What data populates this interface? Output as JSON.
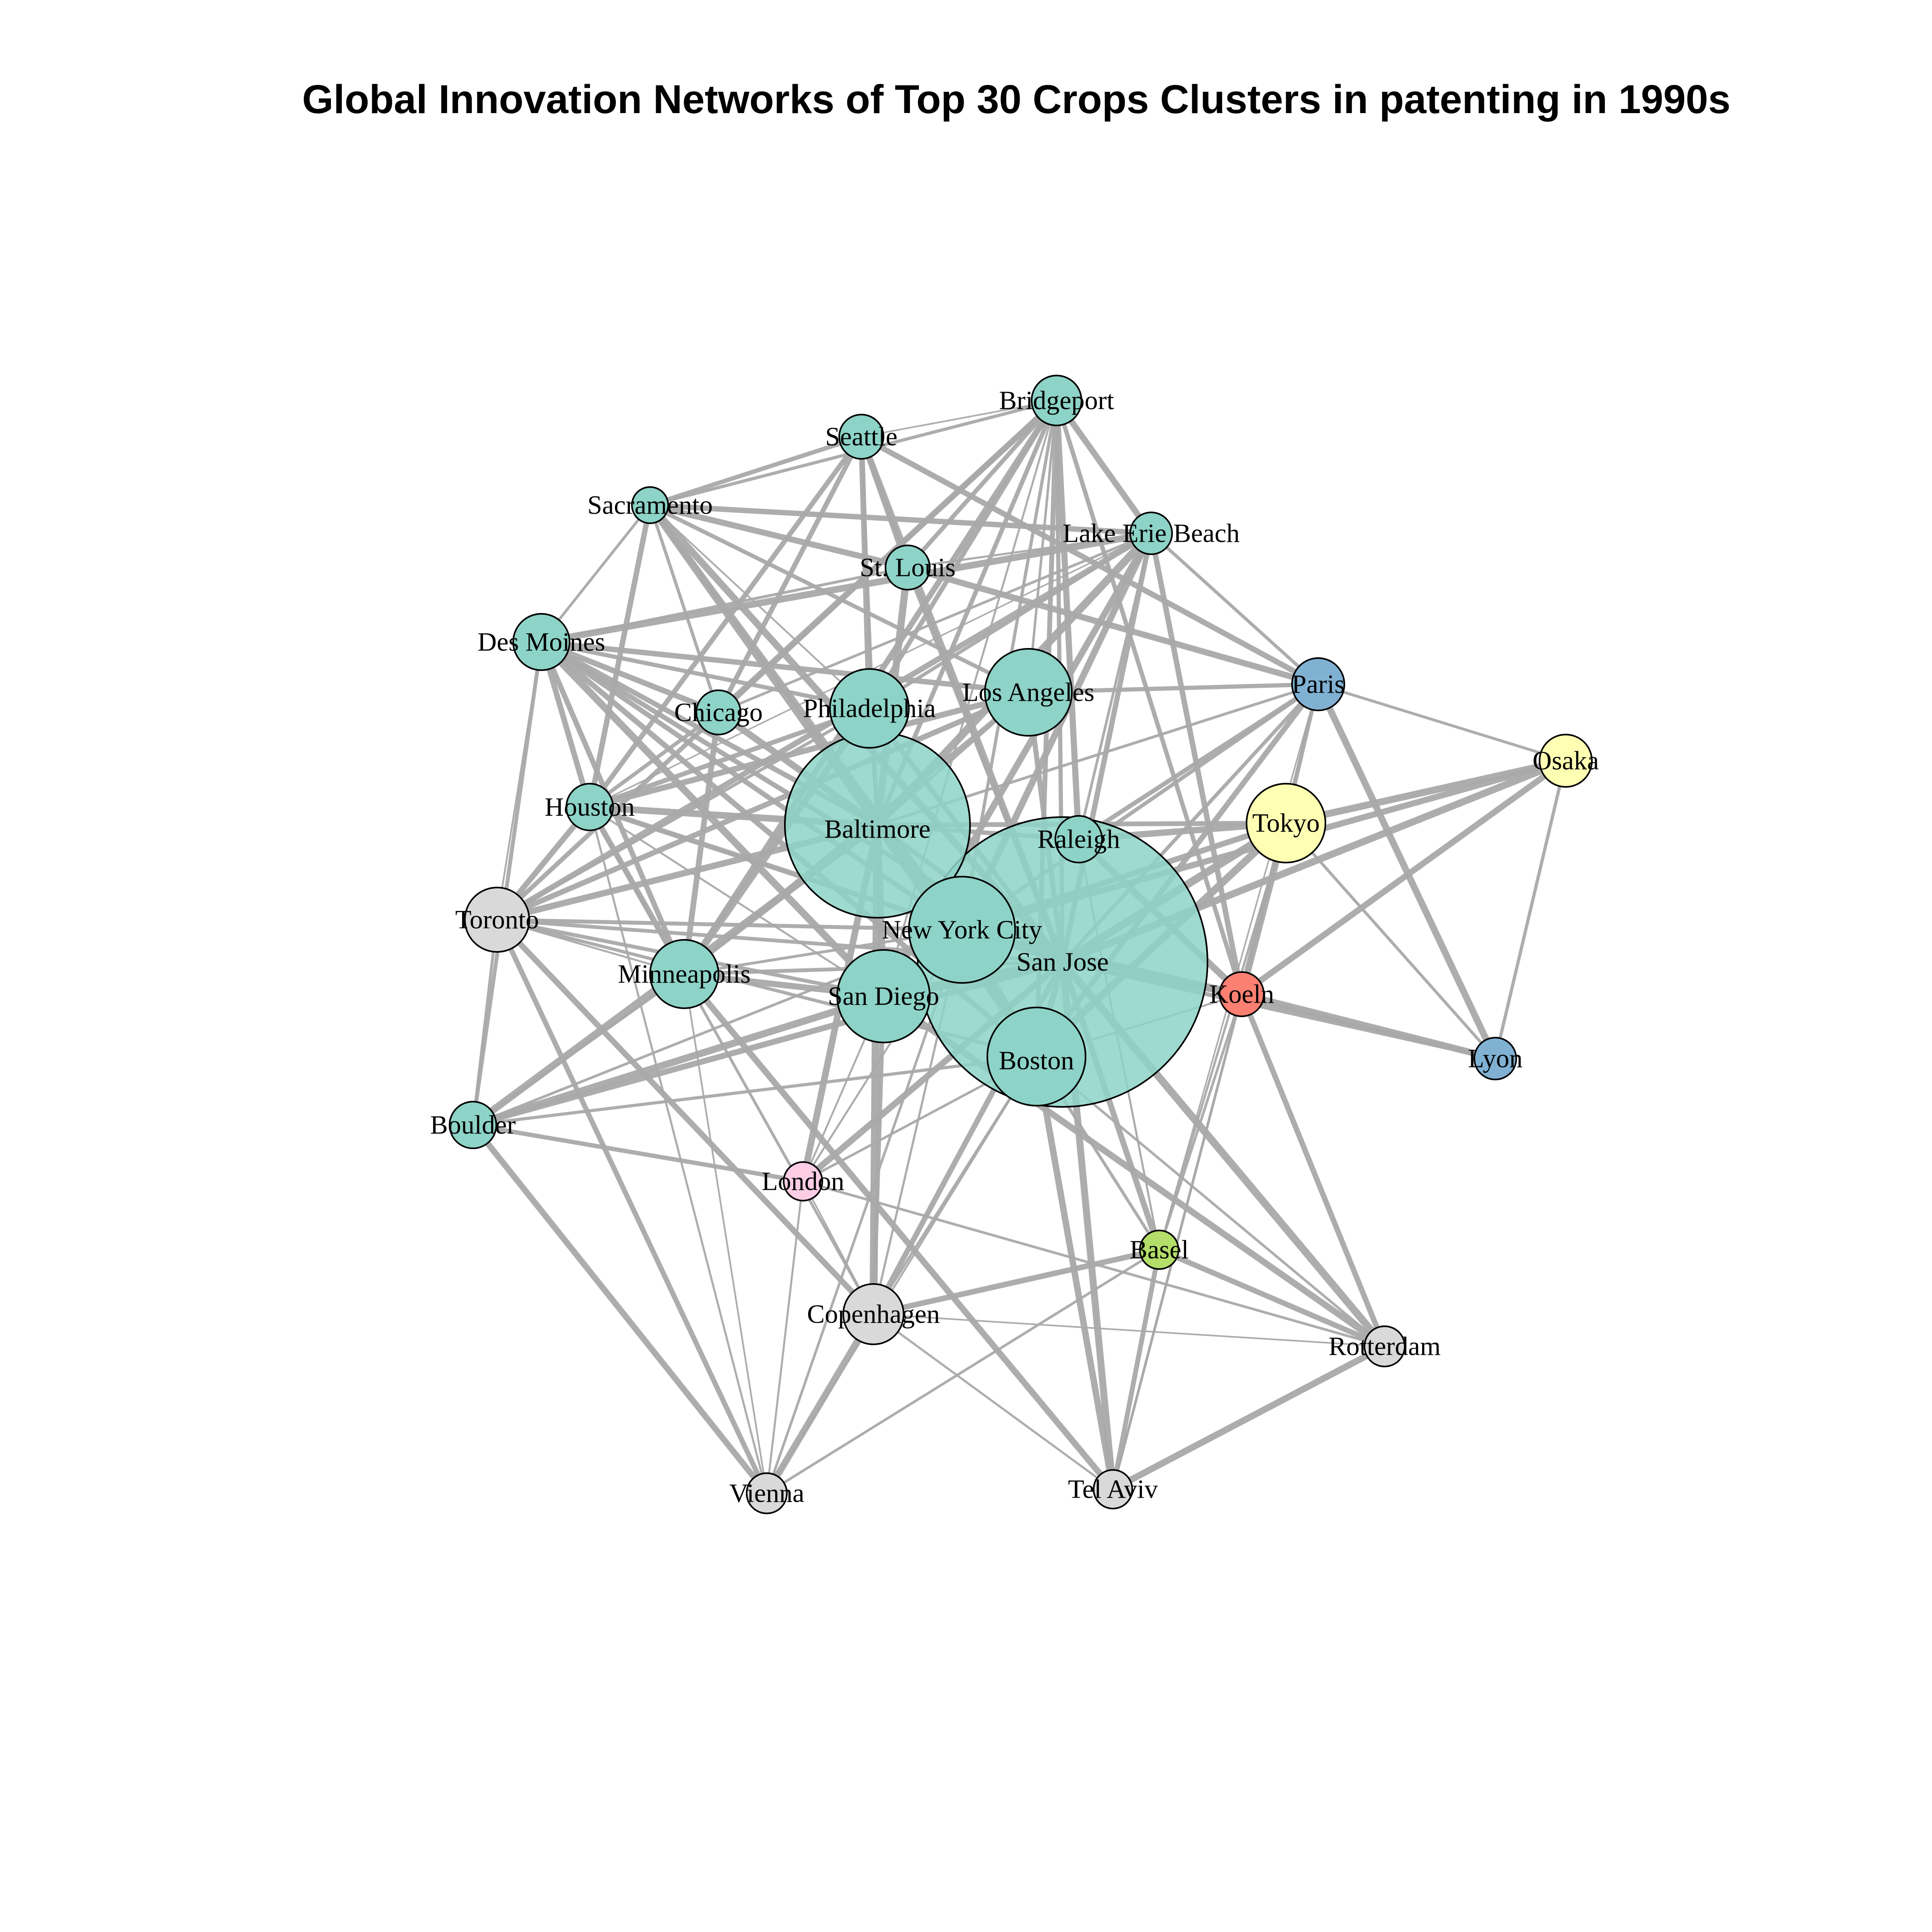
{
  "title": "Global Innovation Networks of Top 30 Crops Clusters in patenting in 1990s",
  "colors": {
    "us": "#8DD3C7",
    "japan": "#FFFFB3",
    "france": "#80B1D3",
    "germany": "#FB8072",
    "switzerland": "#B3DE69",
    "uk": "#FCCDE5",
    "other": "#D9D9D9",
    "edge": "#A9A9A9",
    "node_border": "#000000"
  },
  "nodes": [
    {
      "id": "baltimore",
      "label": "Baltimore",
      "group": "us"
    },
    {
      "id": "sanjose",
      "label": "San Jose",
      "group": "us"
    },
    {
      "id": "nyc",
      "label": "New York City",
      "group": "us"
    },
    {
      "id": "boston",
      "label": "Boston",
      "group": "us"
    },
    {
      "id": "sandiego",
      "label": "San Diego",
      "group": "us"
    },
    {
      "id": "losangeles",
      "label": "Los Angeles",
      "group": "us"
    },
    {
      "id": "philadelphia",
      "label": "Philadelphia",
      "group": "us"
    },
    {
      "id": "minneapolis",
      "label": "Minneapolis",
      "group": "us"
    },
    {
      "id": "raleigh",
      "label": "Raleigh",
      "group": "us"
    },
    {
      "id": "tokyo",
      "label": "Tokyo",
      "group": "japan"
    },
    {
      "id": "osaka",
      "label": "Osaka",
      "group": "japan"
    },
    {
      "id": "paris",
      "label": "Paris",
      "group": "france"
    },
    {
      "id": "lyon",
      "label": "Lyon",
      "group": "france"
    },
    {
      "id": "koeln",
      "label": "Koeln",
      "group": "germany"
    },
    {
      "id": "basel",
      "label": "Basel",
      "group": "switzerland"
    },
    {
      "id": "london",
      "label": "London",
      "group": "uk"
    },
    {
      "id": "toronto",
      "label": "Toronto",
      "group": "other"
    },
    {
      "id": "copenhagen",
      "label": "Copenhagen",
      "group": "other"
    },
    {
      "id": "rotterdam",
      "label": "Rotterdam",
      "group": "other"
    },
    {
      "id": "vienna",
      "label": "Vienna",
      "group": "other"
    },
    {
      "id": "telaviv",
      "label": "Tel Aviv",
      "group": "other"
    },
    {
      "id": "bridgeport",
      "label": "Bridgeport",
      "group": "us"
    },
    {
      "id": "seattle",
      "label": "Seattle",
      "group": "us"
    },
    {
      "id": "sacramento",
      "label": "Sacramento",
      "group": "us"
    },
    {
      "id": "lakeerie",
      "label": "Lake Erie Beach",
      "group": "us"
    },
    {
      "id": "stlouis",
      "label": "St. Louis",
      "group": "us"
    },
    {
      "id": "desmoines",
      "label": "Des Moines",
      "group": "us"
    },
    {
      "id": "chicago",
      "label": "Chicago",
      "group": "us"
    },
    {
      "id": "houston",
      "label": "Houston",
      "group": "us"
    },
    {
      "id": "boulder",
      "label": "Boulder",
      "group": "us"
    }
  ],
  "edges": [
    [
      "baltimore",
      "sanjose"
    ],
    [
      "baltimore",
      "nyc"
    ],
    [
      "baltimore",
      "boston"
    ],
    [
      "baltimore",
      "sandiego"
    ],
    [
      "baltimore",
      "losangeles"
    ],
    [
      "baltimore",
      "philadelphia"
    ],
    [
      "baltimore",
      "minneapolis"
    ],
    [
      "baltimore",
      "raleigh"
    ],
    [
      "baltimore",
      "toronto"
    ],
    [
      "baltimore",
      "houston"
    ],
    [
      "baltimore",
      "desmoines"
    ],
    [
      "baltimore",
      "chicago"
    ],
    [
      "baltimore",
      "sacramento"
    ],
    [
      "baltimore",
      "bridgeport"
    ],
    [
      "baltimore",
      "lakeerie"
    ],
    [
      "baltimore",
      "stlouis"
    ],
    [
      "baltimore",
      "seattle"
    ],
    [
      "baltimore",
      "paris"
    ],
    [
      "baltimore",
      "tokyo"
    ],
    [
      "baltimore",
      "boulder"
    ],
    [
      "baltimore",
      "copenhagen"
    ],
    [
      "baltimore",
      "london"
    ],
    [
      "sanjose",
      "nyc"
    ],
    [
      "sanjose",
      "boston"
    ],
    [
      "sanjose",
      "sandiego"
    ],
    [
      "sanjose",
      "losangeles"
    ],
    [
      "sanjose",
      "philadelphia"
    ],
    [
      "sanjose",
      "minneapolis"
    ],
    [
      "sanjose",
      "toronto"
    ],
    [
      "sanjose",
      "houston"
    ],
    [
      "sanjose",
      "desmoines"
    ],
    [
      "sanjose",
      "bridgeport"
    ],
    [
      "sanjose",
      "lakeerie"
    ],
    [
      "sanjose",
      "stlouis"
    ],
    [
      "sanjose",
      "sacramento"
    ],
    [
      "sanjose",
      "paris"
    ],
    [
      "sanjose",
      "tokyo"
    ],
    [
      "sanjose",
      "osaka"
    ],
    [
      "sanjose",
      "koeln"
    ],
    [
      "sanjose",
      "lyon"
    ],
    [
      "sanjose",
      "basel"
    ],
    [
      "sanjose",
      "rotterdam"
    ],
    [
      "sanjose",
      "telaviv"
    ],
    [
      "sanjose",
      "copenhagen"
    ],
    [
      "sanjose",
      "boulder"
    ],
    [
      "sanjose",
      "london"
    ],
    [
      "sanjose",
      "seattle"
    ],
    [
      "nyc",
      "boston"
    ],
    [
      "nyc",
      "toronto"
    ],
    [
      "nyc",
      "minneapolis"
    ],
    [
      "nyc",
      "desmoines"
    ],
    [
      "nyc",
      "houston"
    ],
    [
      "nyc",
      "bridgeport"
    ],
    [
      "nyc",
      "lakeerie"
    ],
    [
      "nyc",
      "paris"
    ],
    [
      "nyc",
      "tokyo"
    ],
    [
      "nyc",
      "osaka"
    ],
    [
      "nyc",
      "koeln"
    ],
    [
      "nyc",
      "lyon"
    ],
    [
      "nyc",
      "boulder"
    ],
    [
      "nyc",
      "copenhagen"
    ],
    [
      "nyc",
      "vienna"
    ],
    [
      "nyc",
      "london"
    ],
    [
      "nyc",
      "sacramento"
    ],
    [
      "boston",
      "toronto"
    ],
    [
      "boston",
      "boulder"
    ],
    [
      "boston",
      "desmoines"
    ],
    [
      "boston",
      "bridgeport"
    ],
    [
      "boston",
      "paris"
    ],
    [
      "boston",
      "tokyo"
    ],
    [
      "boston",
      "koeln"
    ],
    [
      "boston",
      "basel"
    ],
    [
      "boston",
      "telaviv"
    ],
    [
      "boston",
      "copenhagen"
    ],
    [
      "boston",
      "london"
    ],
    [
      "boston",
      "rotterdam"
    ],
    [
      "boston",
      "vienna"
    ],
    [
      "sandiego",
      "toronto"
    ],
    [
      "sandiego",
      "minneapolis"
    ],
    [
      "sandiego",
      "houston"
    ],
    [
      "sandiego",
      "desmoines"
    ],
    [
      "sandiego",
      "bridgeport"
    ],
    [
      "sandiego",
      "boulder"
    ],
    [
      "sandiego",
      "london"
    ],
    [
      "sandiego",
      "copenhagen"
    ],
    [
      "sandiego",
      "lakeerie"
    ],
    [
      "losangeles",
      "toronto"
    ],
    [
      "losangeles",
      "houston"
    ],
    [
      "losangeles",
      "desmoines"
    ],
    [
      "losangeles",
      "bridgeport"
    ],
    [
      "losangeles",
      "paris"
    ],
    [
      "losangeles",
      "sacramento"
    ],
    [
      "losangeles",
      "minneapolis"
    ],
    [
      "philadelphia",
      "toronto"
    ],
    [
      "philadelphia",
      "houston"
    ],
    [
      "philadelphia",
      "desmoines"
    ],
    [
      "philadelphia",
      "sacramento"
    ],
    [
      "philadelphia",
      "bridgeport"
    ],
    [
      "philadelphia",
      "lakeerie"
    ],
    [
      "philadelphia",
      "seattle"
    ],
    [
      "philadelphia",
      "minneapolis"
    ],
    [
      "raleigh",
      "paris"
    ],
    [
      "raleigh",
      "tokyo"
    ],
    [
      "raleigh",
      "bridgeport"
    ],
    [
      "raleigh",
      "lakeerie"
    ],
    [
      "raleigh",
      "basel"
    ],
    [
      "raleigh",
      "koeln"
    ],
    [
      "toronto",
      "houston"
    ],
    [
      "toronto",
      "desmoines"
    ],
    [
      "toronto",
      "lakeerie"
    ],
    [
      "toronto",
      "bridgeport"
    ],
    [
      "toronto",
      "minneapolis"
    ],
    [
      "toronto",
      "boulder"
    ],
    [
      "toronto",
      "vienna"
    ],
    [
      "toronto",
      "copenhagen"
    ],
    [
      "houston",
      "desmoines"
    ],
    [
      "houston",
      "sacramento"
    ],
    [
      "houston",
      "lakeerie"
    ],
    [
      "houston",
      "minneapolis"
    ],
    [
      "houston",
      "copenhagen"
    ],
    [
      "desmoines",
      "sacramento"
    ],
    [
      "desmoines",
      "lakeerie"
    ],
    [
      "desmoines",
      "stlouis"
    ],
    [
      "desmoines",
      "minneapolis"
    ],
    [
      "desmoines",
      "boulder"
    ],
    [
      "sacramento",
      "stlouis"
    ],
    [
      "sacramento",
      "lakeerie"
    ],
    [
      "sacramento",
      "chicago"
    ],
    [
      "sacramento",
      "seattle"
    ],
    [
      "sacramento",
      "bridgeport"
    ],
    [
      "stlouis",
      "seattle"
    ],
    [
      "stlouis",
      "bridgeport"
    ],
    [
      "stlouis",
      "lakeerie"
    ],
    [
      "stlouis",
      "paris"
    ],
    [
      "lakeerie",
      "bridgeport"
    ],
    [
      "lakeerie",
      "paris"
    ],
    [
      "lakeerie",
      "chicago"
    ],
    [
      "lakeerie",
      "koeln"
    ],
    [
      "bridgeport",
      "seattle"
    ],
    [
      "bridgeport",
      "chicago"
    ],
    [
      "bridgeport",
      "minneapolis"
    ],
    [
      "bridgeport",
      "koeln"
    ],
    [
      "seattle",
      "houston"
    ],
    [
      "seattle",
      "chicago"
    ],
    [
      "seattle",
      "paris"
    ],
    [
      "chicago",
      "houston"
    ],
    [
      "chicago",
      "desmoines"
    ],
    [
      "chicago",
      "minneapolis"
    ],
    [
      "paris",
      "lyon"
    ],
    [
      "paris",
      "tokyo"
    ],
    [
      "paris",
      "osaka"
    ],
    [
      "paris",
      "koeln"
    ],
    [
      "paris",
      "basel"
    ],
    [
      "tokyo",
      "osaka"
    ],
    [
      "tokyo",
      "koeln"
    ],
    [
      "tokyo",
      "basel"
    ],
    [
      "tokyo",
      "telaviv"
    ],
    [
      "tokyo",
      "lyon"
    ],
    [
      "osaka",
      "koeln"
    ],
    [
      "osaka",
      "lyon"
    ],
    [
      "koeln",
      "lyon"
    ],
    [
      "koeln",
      "basel"
    ],
    [
      "koeln",
      "rotterdam"
    ],
    [
      "koeln",
      "telaviv"
    ],
    [
      "basel",
      "copenhagen"
    ],
    [
      "basel",
      "vienna"
    ],
    [
      "basel",
      "telaviv"
    ],
    [
      "basel",
      "rotterdam"
    ],
    [
      "copenhagen",
      "rotterdam"
    ],
    [
      "copenhagen",
      "vienna"
    ],
    [
      "copenhagen",
      "telaviv"
    ],
    [
      "copenhagen",
      "london"
    ],
    [
      "london",
      "boulder"
    ],
    [
      "london",
      "vienna"
    ],
    [
      "london",
      "rotterdam"
    ],
    [
      "rotterdam",
      "telaviv"
    ],
    [
      "rotterdam",
      "sandiego"
    ],
    [
      "minneapolis",
      "boulder"
    ],
    [
      "minneapolis",
      "vienna"
    ],
    [
      "minneapolis",
      "telaviv"
    ],
    [
      "vienna",
      "houston"
    ],
    [
      "vienna",
      "boulder"
    ]
  ]
}
